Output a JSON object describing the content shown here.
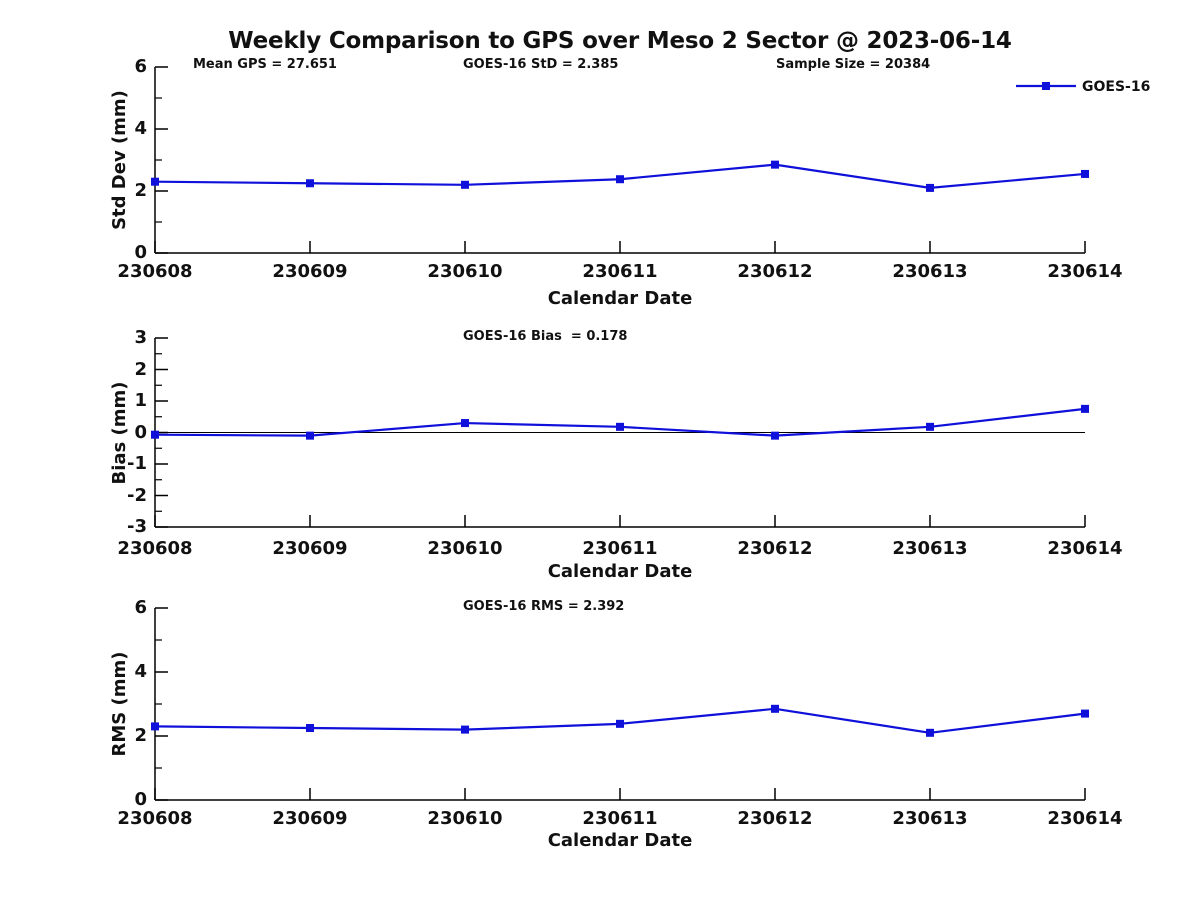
{
  "figure": {
    "title": "Weekly Comparison to GPS over Meso 2 Sector @ 2023-06-14",
    "legend_label": "GOES-16",
    "series_color": "#0f10d9",
    "axis_color": "#000000",
    "background": "#ffffff"
  },
  "chart_data": [
    {
      "type": "line",
      "name": "std-dev",
      "ylabel": "Std Dev (mm)",
      "xlabel": "Calendar Date",
      "categories": [
        "230608",
        "230609",
        "230610",
        "230611",
        "230612",
        "230613",
        "230614"
      ],
      "ylim": [
        0,
        6
      ],
      "yticks": [
        0,
        2,
        4,
        6
      ],
      "minor_yticks": [
        1,
        3,
        5
      ],
      "annotations": [
        "Mean GPS = 27.651",
        "GOES-16 StD = 2.385",
        "Sample Size = 20384"
      ],
      "series": [
        {
          "name": "GOES-16",
          "values": [
            2.3,
            2.25,
            2.2,
            2.38,
            2.85,
            2.1,
            2.55
          ]
        }
      ],
      "zero_line": false,
      "grid": false,
      "legend_position": "top-right"
    },
    {
      "type": "line",
      "name": "bias",
      "ylabel": "Bias (mm)",
      "xlabel": "Calendar Date",
      "categories": [
        "230608",
        "230609",
        "230610",
        "230611",
        "230612",
        "230613",
        "230614"
      ],
      "ylim": [
        -3,
        3
      ],
      "yticks": [
        -3,
        -2,
        -1,
        0,
        1,
        2,
        3
      ],
      "minor_yticks": [
        -2.5,
        -1.5,
        -0.5,
        0.5,
        1.5,
        2.5
      ],
      "annotations": [
        "GOES-16 Bias  = 0.178"
      ],
      "series": [
        {
          "name": "GOES-16",
          "values": [
            -0.07,
            -0.1,
            0.3,
            0.18,
            -0.1,
            0.18,
            0.75
          ]
        }
      ],
      "zero_line": true,
      "grid": false,
      "legend_position": "none"
    },
    {
      "type": "line",
      "name": "rms",
      "ylabel": "RMS (mm)",
      "xlabel": "Calendar Date",
      "categories": [
        "230608",
        "230609",
        "230610",
        "230611",
        "230612",
        "230613",
        "230614"
      ],
      "ylim": [
        0,
        6
      ],
      "yticks": [
        0,
        2,
        4,
        6
      ],
      "minor_yticks": [
        1,
        3,
        5
      ],
      "annotations": [
        "GOES-16 RMS = 2.392"
      ],
      "series": [
        {
          "name": "GOES-16",
          "values": [
            2.3,
            2.25,
            2.2,
            2.38,
            2.85,
            2.1,
            2.7
          ]
        }
      ],
      "zero_line": false,
      "grid": false,
      "legend_position": "none"
    }
  ]
}
